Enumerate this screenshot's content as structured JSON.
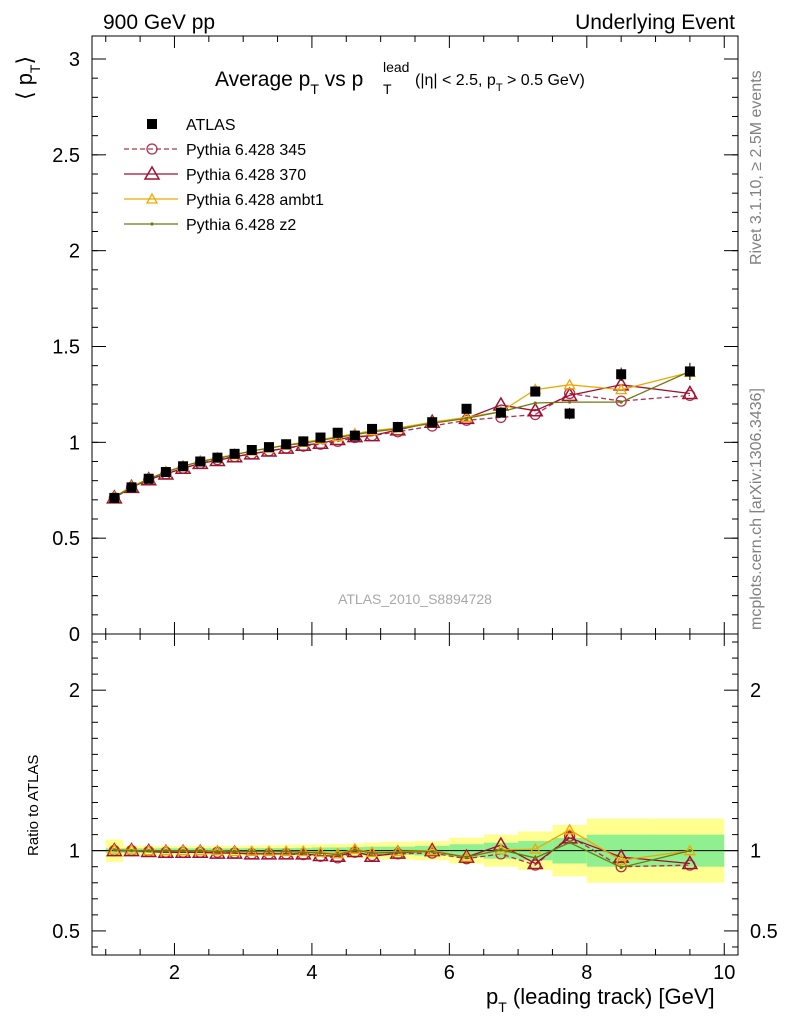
{
  "header": {
    "left": "900 GeV pp",
    "right": "Underlying Event"
  },
  "side_labels": {
    "rivet": "Rivet 3.1.10, ≥ 2.5M events",
    "mcplots": "mcplots.cern.ch [arXiv:1306.3436]"
  },
  "colors": {
    "atlas": "#000000",
    "p345": "#b03050",
    "p370": "#a01030",
    "ambt1": "#f0a800",
    "z2": "#6b7a10",
    "band_inner": "#90f090",
    "band_outer": "#ffff90"
  },
  "chart_data": [
    {
      "type": "line",
      "title": "Average p_T vs p_T^lead (|η| < 2.5, p_T > 0.5 GeV)",
      "title_parts": {
        "main": "Average p",
        "sub1": "T",
        "vs": " vs p",
        "sub2": "T",
        "sup2": "lead",
        "cond_a": "(|η| < 2.5, p",
        "cond_sub": "T",
        "cond_b": " > 0.5 GeV)"
      },
      "ylabel": "⟨ p_T ⟩",
      "ylabel_parts": {
        "open": "⟨ p",
        "sub": "T",
        "close": "⟩"
      },
      "watermark": "ATLAS_2010_S8894728",
      "xlim": [
        0.8,
        10.2
      ],
      "ylim": [
        0,
        3.12
      ],
      "yticks": [
        0,
        0.5,
        1,
        1.5,
        2,
        2.5,
        3
      ],
      "ytick_labels": [
        "0",
        "0.5",
        "1",
        "1.5",
        "2",
        "2.5",
        "3"
      ],
      "legend_position": "top-left",
      "x": [
        1.125,
        1.375,
        1.625,
        1.875,
        2.125,
        2.375,
        2.625,
        2.875,
        3.125,
        3.375,
        3.625,
        3.875,
        4.125,
        4.375,
        4.625,
        4.875,
        5.25,
        5.75,
        6.25,
        6.75,
        7.25,
        7.75,
        8.5,
        9.5
      ],
      "series": [
        {
          "name": "ATLAS",
          "marker": "square",
          "values": [
            0.71,
            0.765,
            0.81,
            0.845,
            0.875,
            0.9,
            0.92,
            0.94,
            0.96,
            0.975,
            0.99,
            1.005,
            1.025,
            1.05,
            1.035,
            1.07,
            1.08,
            1.105,
            1.175,
            1.155,
            1.265,
            1.15,
            1.355,
            1.37
          ],
          "errors": [
            0.005,
            0.005,
            0.005,
            0.005,
            0.005,
            0.005,
            0.006,
            0.006,
            0.007,
            0.007,
            0.008,
            0.008,
            0.009,
            0.01,
            0.01,
            0.012,
            0.012,
            0.015,
            0.02,
            0.02,
            0.025,
            0.03,
            0.035,
            0.045
          ]
        },
        {
          "name": "Pythia 6.428 345",
          "marker": "circle-open",
          "line": "dashed",
          "values": [
            0.71,
            0.765,
            0.805,
            0.835,
            0.865,
            0.89,
            0.91,
            0.925,
            0.94,
            0.955,
            0.97,
            0.98,
            0.99,
            1.005,
            1.025,
            1.035,
            1.055,
            1.085,
            1.115,
            1.13,
            1.145,
            1.255,
            1.215,
            1.245
          ]
        },
        {
          "name": "Pythia 6.428 370",
          "marker": "triangle-open-large",
          "line": "solid",
          "values": [
            0.71,
            0.765,
            0.805,
            0.835,
            0.865,
            0.89,
            0.905,
            0.925,
            0.94,
            0.955,
            0.97,
            0.985,
            0.995,
            1.015,
            1.03,
            1.035,
            1.065,
            1.105,
            1.125,
            1.195,
            1.165,
            1.245,
            1.3,
            1.255
          ]
        },
        {
          "name": "Pythia 6.428 ambt1",
          "marker": "triangle-open-small",
          "line": "solid",
          "values": [
            0.715,
            0.77,
            0.81,
            0.845,
            0.875,
            0.9,
            0.92,
            0.935,
            0.955,
            0.97,
            0.985,
            1.0,
            1.015,
            1.03,
            1.045,
            1.06,
            1.075,
            1.105,
            1.13,
            1.16,
            1.275,
            1.3,
            1.275,
            1.365
          ]
        },
        {
          "name": "Pythia 6.428 z2",
          "marker": "dot",
          "line": "solid",
          "values": [
            0.715,
            0.765,
            0.81,
            0.845,
            0.875,
            0.9,
            0.915,
            0.935,
            0.955,
            0.97,
            0.985,
            0.995,
            1.01,
            1.025,
            1.04,
            1.055,
            1.07,
            1.1,
            1.125,
            1.16,
            1.205,
            1.21,
            1.21,
            1.37
          ]
        }
      ]
    },
    {
      "type": "line",
      "ylabel": "Ratio to ATLAS",
      "xlabel": "p_T (leading track) [GeV]",
      "xlabel_parts": {
        "main": "p",
        "sub": "T",
        "rest": " (leading track) [GeV]"
      },
      "xlim": [
        0.8,
        10.2
      ],
      "ylim": [
        0.35,
        2.35
      ],
      "xticks": [
        2,
        4,
        6,
        8,
        10
      ],
      "xtick_labels": [
        "2",
        "4",
        "6",
        "8",
        "10"
      ],
      "yticks": [
        0.5,
        1,
        2
      ],
      "ytick_labels": [
        "0.5",
        "1",
        "2"
      ],
      "bin_edges": [
        1.0,
        1.25,
        1.5,
        1.75,
        2.0,
        2.25,
        2.5,
        2.75,
        3.0,
        3.25,
        3.5,
        3.75,
        4.0,
        4.25,
        4.5,
        4.75,
        5.0,
        5.5,
        6.0,
        6.5,
        7.0,
        7.5,
        8.0,
        9.0,
        10.0
      ],
      "band_inner_halfwidth": [
        0.015,
        0.015,
        0.015,
        0.015,
        0.015,
        0.015,
        0.015,
        0.015,
        0.016,
        0.016,
        0.017,
        0.018,
        0.02,
        0.02,
        0.022,
        0.025,
        0.025,
        0.03,
        0.04,
        0.05,
        0.06,
        0.08,
        0.1,
        0.1
      ],
      "band_outer_halfwidth": [
        0.07,
        0.03,
        0.03,
        0.03,
        0.03,
        0.03,
        0.03,
        0.03,
        0.032,
        0.034,
        0.036,
        0.038,
        0.04,
        0.042,
        0.045,
        0.05,
        0.055,
        0.06,
        0.08,
        0.1,
        0.12,
        0.16,
        0.2,
        0.2
      ],
      "series": [
        {
          "name": "Pythia 6.428 345",
          "values": [
            1.0,
            1.0,
            0.995,
            0.99,
            0.99,
            0.99,
            0.99,
            0.985,
            0.98,
            0.98,
            0.98,
            0.975,
            0.965,
            0.955,
            0.99,
            0.97,
            0.98,
            0.985,
            0.95,
            0.98,
            0.91,
            1.09,
            0.9,
            0.91
          ]
        },
        {
          "name": "Pythia 6.428 370",
          "values": [
            1.0,
            1.0,
            0.995,
            0.99,
            0.99,
            0.99,
            0.985,
            0.985,
            0.98,
            0.98,
            0.98,
            0.98,
            0.97,
            0.965,
            0.995,
            0.965,
            0.985,
            1.0,
            0.96,
            1.035,
            0.92,
            1.08,
            0.96,
            0.92
          ]
        },
        {
          "name": "Pythia 6.428 ambt1",
          "values": [
            1.005,
            1.005,
            1.0,
            1.0,
            1.0,
            1.0,
            1.0,
            0.995,
            0.995,
            0.995,
            0.995,
            0.995,
            0.99,
            0.98,
            1.01,
            0.99,
            0.995,
            1.0,
            0.96,
            1.005,
            1.01,
            1.13,
            0.94,
            1.0
          ]
        },
        {
          "name": "Pythia 6.428 z2",
          "values": [
            1.005,
            1.0,
            1.0,
            1.0,
            1.0,
            1.0,
            0.995,
            0.995,
            0.995,
            0.995,
            0.995,
            0.99,
            0.985,
            0.975,
            1.005,
            0.985,
            0.99,
            0.995,
            0.96,
            1.005,
            0.955,
            1.05,
            0.895,
            1.0
          ]
        }
      ]
    }
  ]
}
